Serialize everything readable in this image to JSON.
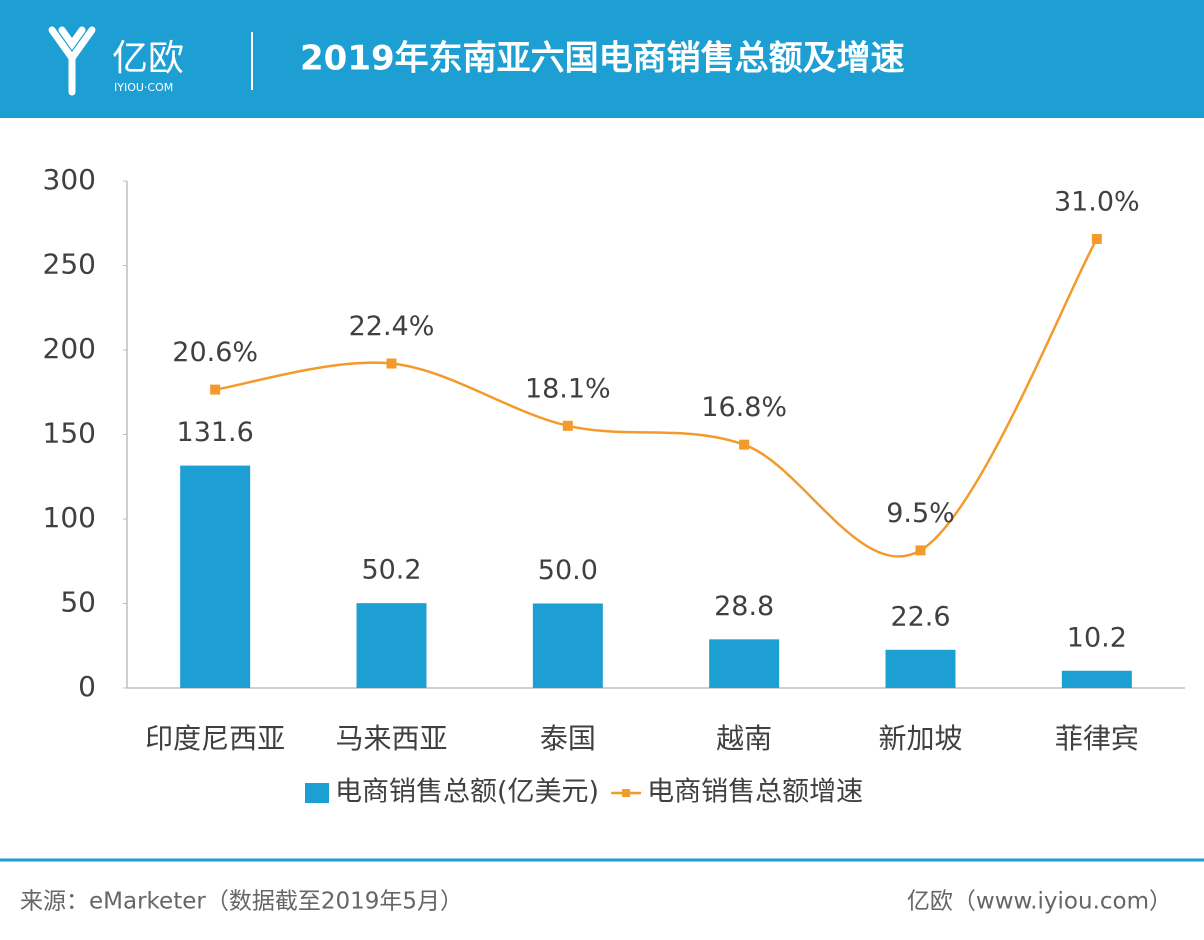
{
  "header": {
    "logo": "亿欧",
    "logo_sub": "IYIOU·COM"
  },
  "chart_data": {
    "type": "bar-line",
    "title": "2019年东南亚六国电商销售总额及增速",
    "categories": [
      "印度尼西亚",
      "马来西亚",
      "泰国",
      "越南",
      "新加坡",
      "菲律宾"
    ],
    "series": [
      {
        "name": "电商销售总额(亿美元)",
        "color": "#1e9fd4",
        "type": "bar",
        "values": [
          131.6,
          50.2,
          50.0,
          28.8,
          22.6,
          10.2
        ],
        "value_labels": [
          "131.6",
          "50.2",
          "50.0",
          "28.8",
          "22.6",
          "10.2"
        ]
      },
      {
        "name": "电商销售总额增速",
        "color": "#f39a2b",
        "type": "line",
        "axis": "y2",
        "values": [
          20.6,
          22.4,
          18.1,
          16.8,
          9.5,
          31.0
        ],
        "value_labels": [
          "20.6%",
          "22.4%",
          "18.1%",
          "16.8%",
          "9.5%",
          "31.0%"
        ]
      }
    ],
    "ylim": [
      0,
      300
    ],
    "yticks": [
      0,
      50,
      100,
      150,
      200,
      250,
      300
    ],
    "y2lim": [
      0,
      35
    ],
    "legend": "bottom",
    "source": "来源：eMarketer（数据截至2019年5月）",
    "credit": "亿欧（www.iyiou.com）"
  }
}
